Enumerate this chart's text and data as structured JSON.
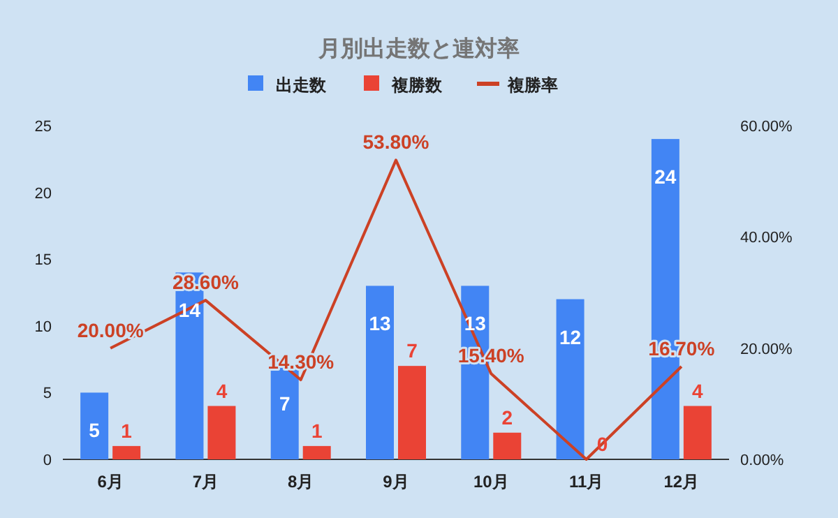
{
  "chart_data": {
    "type": "bar",
    "title": "月別出走数と連対率",
    "categories": [
      "6月",
      "7月",
      "8月",
      "9月",
      "10月",
      "11月",
      "12月"
    ],
    "series": [
      {
        "name": "出走数",
        "color": "#4285f4",
        "values": [
          5,
          14,
          7,
          13,
          13,
          12,
          24
        ]
      },
      {
        "name": "複勝数",
        "color": "#ea4335",
        "values": [
          1,
          4,
          1,
          7,
          2,
          0,
          4
        ]
      },
      {
        "name": "複勝率",
        "type": "line",
        "axis": "y2",
        "color": "#cc4125",
        "values": [
          20.0,
          28.6,
          14.3,
          53.8,
          15.4,
          0,
          16.7
        ],
        "value_labels": [
          "20.00%",
          "28.60%",
          "14.30%",
          "53.80%",
          "15.40%",
          null,
          "16.70%"
        ]
      }
    ],
    "ylim": [
      0,
      25
    ],
    "yticks": [
      0,
      5,
      10,
      15,
      20,
      25
    ],
    "y2lim": [
      0,
      60
    ],
    "y2ticks": [
      {
        "value": 0,
        "label": "0.00%"
      },
      {
        "value": 20,
        "label": "20.00%"
      },
      {
        "value": 40,
        "label": "40.00%"
      },
      {
        "value": 60,
        "label": "60.00%"
      }
    ],
    "data_labels": true,
    "legend": "top",
    "grid": false
  }
}
